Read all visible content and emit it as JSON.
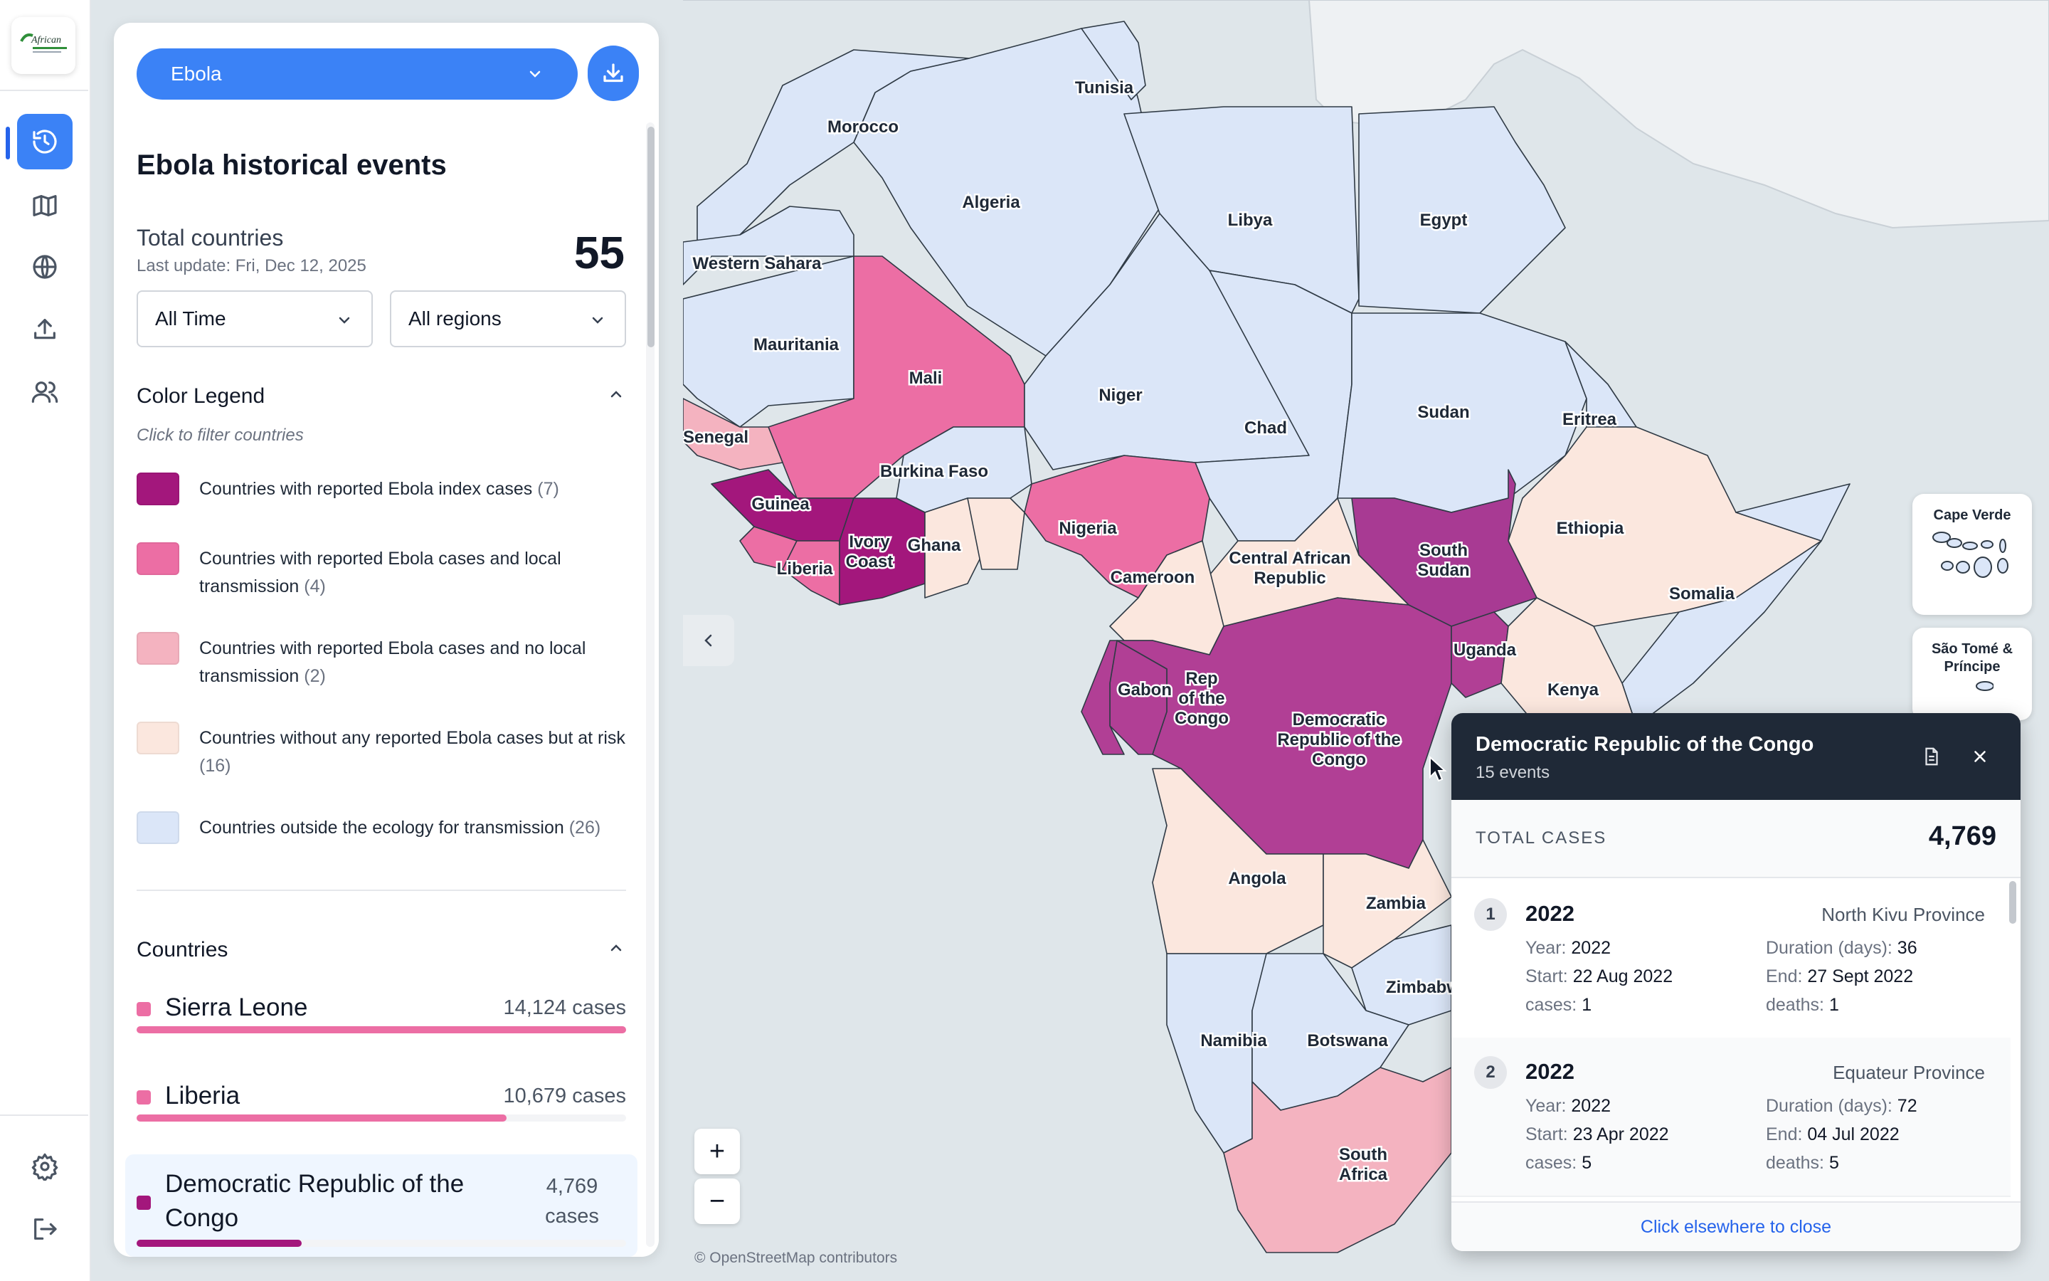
{
  "nav": {
    "logo_text": "African",
    "items": [
      "history",
      "map",
      "globe",
      "upload",
      "users"
    ],
    "bottom": [
      "settings",
      "logout"
    ]
  },
  "panel": {
    "disease": "Ebola",
    "title": "Ebola historical events",
    "total_label": "Total countries",
    "last_update": "Last update: Fri, Dec 12, 2025",
    "total_value": "55",
    "time_filter": "All Time",
    "region_filter": "All regions",
    "legend_title": "Color Legend",
    "legend_hint": "Click to filter countries",
    "legend": [
      {
        "label": "Countries with reported Ebola index cases",
        "count": "(7)",
        "color": "#a3177c"
      },
      {
        "label": "Countries with reported Ebola cases and local transmission",
        "count": "(4)",
        "color": "#ec6ea4"
      },
      {
        "label": "Countries with reported Ebola cases and no local transmission",
        "count": "(2)",
        "color": "#f4b3c0"
      },
      {
        "label": "Countries without any reported Ebola cases but at risk",
        "count": "(16)",
        "color": "#fbe7de"
      },
      {
        "label": "Countries outside the ecology for transmission",
        "count": "(26)",
        "color": "#dbe6f8"
      }
    ],
    "countries_title": "Countries",
    "countries": [
      {
        "name": "Sierra Leone",
        "cases": "14,124 cases",
        "value": 14124,
        "color": "#ec6ea4"
      },
      {
        "name": "Liberia",
        "cases": "10,679 cases",
        "value": 10679,
        "color": "#ec6ea4"
      },
      {
        "name": "Democratic Republic of the Congo",
        "cases": "4,769 cases",
        "value": 4769,
        "color": "#a3177c"
      }
    ],
    "max_cases": 14124
  },
  "map": {
    "attribution": "© OpenStreetMap contributors",
    "zoom_in": "+",
    "zoom_out": "−",
    "labels": {
      "tunisia": "Tunisia",
      "morocco": "Morocco",
      "algeria": "Algeria",
      "libya": "Libya",
      "egypt": "Egypt",
      "western_sahara": "Western Sahara",
      "mauritania": "Mauritania",
      "mali": "Mali",
      "niger": "Niger",
      "chad": "Chad",
      "sudan": "Sudan",
      "eritrea": "Eritrea",
      "senegal": "Senegal",
      "burkina_faso": "Burkina Faso",
      "guinea": "Guinea",
      "ivory_coast_1": "Ivory",
      "ivory_coast_2": "Coast",
      "ghana": "Ghana",
      "liberia": "Liberia",
      "nigeria": "Nigeria",
      "ethiopia": "Ethiopia",
      "south_sudan_1": "South",
      "south_sudan_2": "Sudan",
      "car_1": "Central African",
      "car_2": "Republic",
      "cameroon": "Cameroon",
      "somalia": "Somalia",
      "uganda": "Uganda",
      "kenya": "Kenya",
      "gabon": "Gabon",
      "rep_congo_1": "Rep",
      "rep_congo_2": "of the",
      "rep_congo_3": "Congo",
      "drc_1": "Democratic",
      "drc_2": "Republic of the",
      "drc_3": "Congo",
      "angola": "Angola",
      "zambia": "Zambia",
      "zimbabwe": "Zimbabw",
      "namibia": "Namibia",
      "botswana": "Botswana",
      "south_africa_1": "South",
      "south_africa_2": "Africa"
    },
    "insets": [
      {
        "title_1": "Cape Verde",
        "title_2": ""
      },
      {
        "title_1": "São Tomé &",
        "title_2": "Príncipe"
      }
    ],
    "colors": {
      "ocean": "#dfe6ea",
      "index": "#a3177c",
      "local": "#ec6ea4",
      "nolocal": "#f4b3c0",
      "risk": "#fbe7de",
      "outside": "#dbe6f8",
      "land": "#eef1f3"
    }
  },
  "popup": {
    "title": "Democratic Republic of the Congo",
    "subtitle": "15 events",
    "total_label": "TOTAL CASES",
    "total_value": "4,769",
    "events": [
      {
        "num": "1",
        "year_title": "2022",
        "location": "North Kivu Province",
        "year": "2022",
        "duration": "36",
        "start": "22 Aug 2022",
        "end": "27 Sept 2022",
        "cases": "1",
        "deaths": "1"
      },
      {
        "num": "2",
        "year_title": "2022",
        "location": "Equateur Province",
        "year": "2022",
        "duration": "72",
        "start": "23 Apr 2022",
        "end": "04 Jul 2022",
        "cases": "5",
        "deaths": "5"
      }
    ],
    "field_labels": {
      "year": "Year: ",
      "duration": "Duration (days): ",
      "start": "Start: ",
      "end": "End: ",
      "cases": "cases: ",
      "deaths": "deaths: "
    },
    "footer": "Click elsewhere to close"
  }
}
